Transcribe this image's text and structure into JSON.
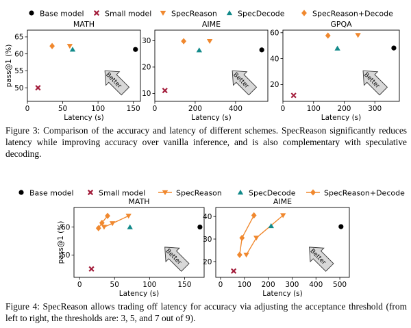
{
  "legend_top": [
    {
      "label": "Base model",
      "marker": "circle",
      "color": "#000000",
      "line": false
    },
    {
      "label": "Small model",
      "marker": "x",
      "color": "#a31d3b",
      "line": false
    },
    {
      "label": "SpecReason",
      "marker": "tri_down",
      "color": "#f0882e",
      "line": false
    },
    {
      "label": "SpecDecode",
      "marker": "tri_up",
      "color": "#128a8a",
      "line": false
    },
    {
      "label": "SpecReason+Decode",
      "marker": "diamond",
      "color": "#f0882e",
      "line": false
    }
  ],
  "legend_bottom": [
    {
      "label": "Base model",
      "marker": "circle",
      "color": "#000000",
      "line": false
    },
    {
      "label": "Small model",
      "marker": "x",
      "color": "#a31d3b",
      "line": false
    },
    {
      "label": "SpecReason",
      "marker": "tri_down",
      "color": "#f0882e",
      "line": true
    },
    {
      "label": "SpecDecode",
      "marker": "tri_up",
      "color": "#128a8a",
      "line": false
    },
    {
      "label": "SpecReason+Decode",
      "marker": "diamond",
      "color": "#f0882e",
      "line": true
    }
  ],
  "shared": {
    "xlabel": "Latency (s)",
    "ylabel": "pass@1 (%)",
    "better_label": "Better"
  },
  "captions": {
    "figure3": "Figure 3: Comparison of the accuracy and latency of different schemes. SpecReason significantly reduces latency while improving accuracy over vanilla inference, and is also complementary with speculative decoding.",
    "figure4": "Figure 4: SpecReason allows trading off latency for accuracy via adjusting the acceptance threshold (from left to right, the thresholds are: 3, 5, and 7 out of 9)."
  },
  "chart_data": [
    {
      "type": "scatter",
      "title": "MATH",
      "xlabel": "Latency (s)",
      "ylabel": "pass@1 (%)",
      "xlim": [
        0,
        160
      ],
      "ylim": [
        46,
        67
      ],
      "xticks": [
        0,
        50,
        100,
        150
      ],
      "yticks": [
        50,
        55,
        60,
        65
      ],
      "series": [
        {
          "name": "Base model",
          "x": [
            153
          ],
          "y": [
            61.3
          ]
        },
        {
          "name": "Small model",
          "x": [
            15
          ],
          "y": [
            50
          ]
        },
        {
          "name": "SpecReason",
          "x": [
            60
          ],
          "y": [
            62.3
          ]
        },
        {
          "name": "SpecDecode",
          "x": [
            64
          ],
          "y": [
            61.3
          ]
        },
        {
          "name": "SpecReason+Decode",
          "x": [
            35
          ],
          "y": [
            62.3
          ]
        }
      ]
    },
    {
      "type": "scatter",
      "title": "AIME",
      "xlabel": "Latency (s)",
      "ylabel": "",
      "xlim": [
        0,
        560
      ],
      "ylim": [
        7,
        34
      ],
      "xticks": [
        0,
        200,
        400
      ],
      "yticks": [
        10,
        20,
        30
      ],
      "series": [
        {
          "name": "Base model",
          "x": [
            530
          ],
          "y": [
            26.5
          ]
        },
        {
          "name": "Small model",
          "x": [
            50
          ],
          "y": [
            11.1
          ]
        },
        {
          "name": "SpecReason",
          "x": [
            272
          ],
          "y": [
            29.8
          ]
        },
        {
          "name": "SpecDecode",
          "x": [
            220
          ],
          "y": [
            26.4
          ]
        },
        {
          "name": "SpecReason+Decode",
          "x": [
            143
          ],
          "y": [
            29.8
          ]
        }
      ]
    },
    {
      "type": "scatter",
      "title": "GPQA",
      "xlabel": "Latency (s)",
      "ylabel": "",
      "xlim": [
        0,
        380
      ],
      "ylim": [
        7,
        62
      ],
      "xticks": [
        0,
        100,
        200,
        300
      ],
      "yticks": [
        20,
        40,
        60
      ],
      "series": [
        {
          "name": "Base model",
          "x": [
            362
          ],
          "y": [
            48.2
          ]
        },
        {
          "name": "Small model",
          "x": [
            35
          ],
          "y": [
            11.6
          ]
        },
        {
          "name": "SpecReason",
          "x": [
            245
          ],
          "y": [
            58.1
          ]
        },
        {
          "name": "SpecDecode",
          "x": [
            178
          ],
          "y": [
            47.9
          ]
        },
        {
          "name": "SpecReason+Decode",
          "x": [
            147
          ],
          "y": [
            57.8
          ]
        }
      ]
    },
    {
      "type": "line",
      "title": "MATH",
      "xlabel": "Latency (s)",
      "ylabel": "pass@1 (%)",
      "xlim": [
        -8,
        178
      ],
      "ylim": [
        42,
        67
      ],
      "xticks": [
        0,
        50,
        100,
        150
      ],
      "yticks": [
        50,
        60
      ],
      "series": [
        {
          "name": "Base model",
          "x": [
            172
          ],
          "y": [
            60
          ]
        },
        {
          "name": "Small model",
          "x": [
            17
          ],
          "y": [
            45
          ]
        },
        {
          "name": "SpecReason",
          "x": [
            35,
            47,
            70
          ],
          "y": [
            60,
            61.3,
            64
          ]
        },
        {
          "name": "SpecDecode",
          "x": [
            72
          ],
          "y": [
            60
          ]
        },
        {
          "name": "SpecReason+Decode",
          "x": [
            27,
            32,
            40
          ],
          "y": [
            59.6,
            61.5,
            64
          ]
        }
      ]
    },
    {
      "type": "line",
      "title": "AIME",
      "xlabel": "Latency (s)",
      "ylabel": "",
      "xlim": [
        -20,
        540
      ],
      "ylim": [
        13,
        44
      ],
      "xticks": [
        0,
        100,
        200,
        300,
        400,
        500
      ],
      "yticks": [
        20,
        30,
        40
      ],
      "series": [
        {
          "name": "Base model",
          "x": [
            505
          ],
          "y": [
            35.5
          ]
        },
        {
          "name": "Small model",
          "x": [
            55
          ],
          "y": [
            15.8
          ]
        },
        {
          "name": "SpecReason",
          "x": [
            108,
            150,
            262
          ],
          "y": [
            23,
            30.5,
            40.5
          ]
        },
        {
          "name": "SpecDecode",
          "x": [
            212
          ],
          "y": [
            35.8
          ]
        },
        {
          "name": "SpecReason+Decode",
          "x": [
            80,
            90,
            140
          ],
          "y": [
            23,
            30.5,
            40.5
          ]
        }
      ]
    }
  ]
}
